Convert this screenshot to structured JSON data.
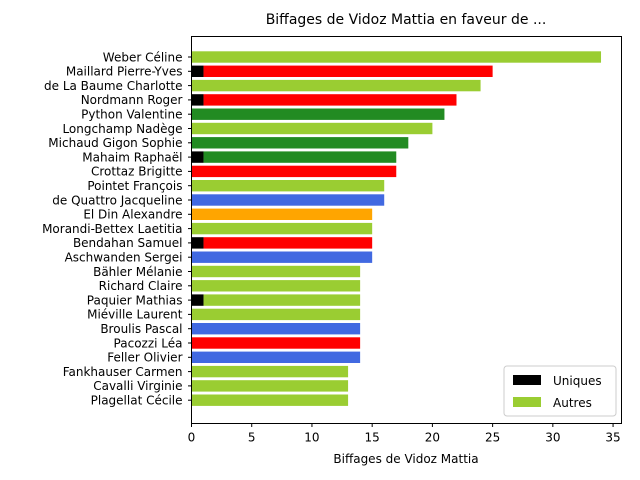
{
  "chart_data": {
    "type": "bar",
    "orientation": "horizontal",
    "stacked": true,
    "title": "Biffages de Vidoz Mattia en faveur de ...",
    "xlabel": "Biffages de Vidoz Mattia",
    "ylabel": "",
    "xlim": [
      0,
      35.7
    ],
    "xticks": [
      0,
      5,
      10,
      15,
      20,
      25,
      30,
      35
    ],
    "grid": false,
    "legend_position": "lower-right",
    "categories": [
      "Weber Céline",
      "Maillard Pierre-Yves",
      "de La Baume Charlotte",
      "Nordmann Roger",
      "Python Valentine",
      "Longchamp Nadège",
      "Michaud Gigon Sophie",
      "Mahaim Raphaël",
      "Crottaz Brigitte",
      "Pointet François",
      "de Quattro Jacqueline",
      "El Din Alexandre",
      "Morandi-Bettex Laetitia",
      "Bendahan Samuel",
      "Aschwanden Sergei",
      "Bähler Mélanie",
      "Richard Claire",
      "Paquier Mathias",
      "Miéville Laurent",
      "Broulis Pascal",
      "Pacozzi Léa",
      "Feller Olivier",
      "Fankhauser Carmen",
      "Cavalli Virginie",
      "Plagellat Cécile"
    ],
    "series": [
      {
        "name": "Uniques",
        "color": "#000000",
        "values": [
          0,
          1,
          0,
          1,
          0,
          0,
          0,
          1,
          0,
          0,
          0,
          0,
          0,
          1,
          0,
          0,
          0,
          1,
          0,
          0,
          0,
          0,
          0,
          0,
          0
        ]
      },
      {
        "name": "Autres",
        "color": "#9acd32",
        "values": [
          34,
          24,
          24,
          21,
          21,
          20,
          18,
          16,
          17,
          16,
          16,
          15,
          15,
          14,
          15,
          14,
          14,
          13,
          14,
          14,
          14,
          14,
          13,
          13,
          13
        ]
      }
    ],
    "bar_colors": [
      "#9acd32",
      "#ff0000",
      "#9acd32",
      "#ff0000",
      "#228b22",
      "#9acd32",
      "#228b22",
      "#228b22",
      "#ff0000",
      "#9acd32",
      "#4169e1",
      "#ffa500",
      "#9acd32",
      "#ff0000",
      "#4169e1",
      "#9acd32",
      "#9acd32",
      "#9acd32",
      "#9acd32",
      "#4169e1",
      "#ff0000",
      "#4169e1",
      "#9acd32",
      "#9acd32",
      "#9acd32"
    ]
  }
}
